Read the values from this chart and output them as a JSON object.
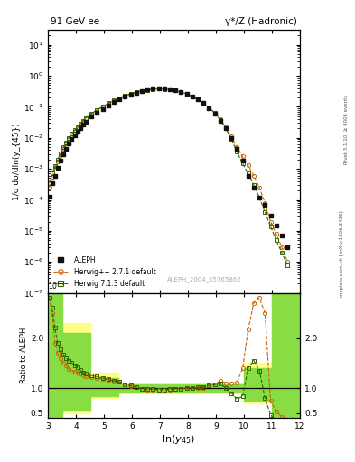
{
  "title_left": "91 GeV ee",
  "title_right": "γ*/Z (Hadronic)",
  "xlabel": "-ln(y_{45})",
  "ylabel_main": "1/σ dσ/dln(y_{45})",
  "ylabel_ratio": "Ratio to ALEPH",
  "watermark": "ALEPH_2004_S5765862",
  "right_label": "mcplots.cern.ch [arXiv:1306.3436]",
  "rivet_label": "Rivet 3.1.10, ≥ 400k events",
  "aleph_x": [
    3.05,
    3.15,
    3.25,
    3.35,
    3.45,
    3.55,
    3.65,
    3.75,
    3.85,
    3.95,
    4.05,
    4.15,
    4.25,
    4.35,
    4.55,
    4.75,
    4.95,
    5.15,
    5.35,
    5.55,
    5.75,
    5.95,
    6.15,
    6.35,
    6.55,
    6.75,
    6.95,
    7.15,
    7.35,
    7.55,
    7.75,
    7.95,
    8.15,
    8.35,
    8.55,
    8.75,
    8.95,
    9.15,
    9.35,
    9.55,
    9.75,
    9.95,
    10.15,
    10.35,
    10.55,
    10.75,
    10.95,
    11.15,
    11.35,
    11.55
  ],
  "aleph_y": [
    0.00013,
    0.00035,
    0.0006,
    0.0011,
    0.0018,
    0.003,
    0.0045,
    0.0065,
    0.009,
    0.012,
    0.016,
    0.021,
    0.027,
    0.034,
    0.048,
    0.065,
    0.085,
    0.11,
    0.14,
    0.17,
    0.21,
    0.25,
    0.29,
    0.33,
    0.36,
    0.38,
    0.395,
    0.39,
    0.37,
    0.34,
    0.305,
    0.26,
    0.215,
    0.17,
    0.13,
    0.09,
    0.06,
    0.035,
    0.02,
    0.01,
    0.0045,
    0.0018,
    0.0006,
    0.00025,
    0.00012,
    7e-05,
    3e-05,
    1.5e-05,
    7e-06,
    3e-06
  ],
  "aleph_color": "#111111",
  "herwigpp_x": [
    3.05,
    3.15,
    3.25,
    3.35,
    3.45,
    3.55,
    3.65,
    3.75,
    3.85,
    3.95,
    4.05,
    4.15,
    4.25,
    4.35,
    4.55,
    4.75,
    4.95,
    5.15,
    5.35,
    5.55,
    5.75,
    5.95,
    6.15,
    6.35,
    6.55,
    6.75,
    6.95,
    7.15,
    7.35,
    7.55,
    7.75,
    7.95,
    8.15,
    8.35,
    8.55,
    8.75,
    8.95,
    9.15,
    9.35,
    9.55,
    9.75,
    9.95,
    10.15,
    10.35,
    10.55,
    10.75,
    10.95,
    11.15,
    11.35,
    11.55
  ],
  "herwigpp_y": [
    0.00025,
    0.00055,
    0.001,
    0.0017,
    0.0028,
    0.0045,
    0.0065,
    0.009,
    0.012,
    0.016,
    0.021,
    0.027,
    0.034,
    0.042,
    0.058,
    0.078,
    0.1,
    0.128,
    0.158,
    0.19,
    0.225,
    0.26,
    0.295,
    0.325,
    0.35,
    0.37,
    0.38,
    0.375,
    0.36,
    0.335,
    0.3,
    0.26,
    0.215,
    0.17,
    0.13,
    0.095,
    0.065,
    0.04,
    0.022,
    0.011,
    0.005,
    0.0025,
    0.0013,
    0.0006,
    0.00025,
    8e-05,
    2e-05,
    8e-06,
    3e-06,
    1e-06
  ],
  "herwigpp_color": "#cc6600",
  "herwig713_x": [
    3.05,
    3.15,
    3.25,
    3.35,
    3.45,
    3.55,
    3.65,
    3.75,
    3.85,
    3.95,
    4.05,
    4.15,
    4.25,
    4.35,
    4.55,
    4.75,
    4.95,
    5.15,
    5.35,
    5.55,
    5.75,
    5.95,
    6.15,
    6.35,
    6.55,
    6.75,
    6.95,
    7.15,
    7.35,
    7.55,
    7.75,
    7.95,
    8.15,
    8.35,
    8.55,
    8.75,
    8.95,
    9.15,
    9.35,
    9.55,
    9.75,
    9.95,
    10.15,
    10.35,
    10.55,
    10.75,
    10.95,
    11.15,
    11.35,
    11.55
  ],
  "herwig713_y": [
    0.00035,
    0.0007,
    0.0012,
    0.002,
    0.0032,
    0.005,
    0.0072,
    0.01,
    0.0135,
    0.0175,
    0.0225,
    0.0285,
    0.0355,
    0.044,
    0.06,
    0.08,
    0.102,
    0.13,
    0.16,
    0.192,
    0.227,
    0.262,
    0.297,
    0.327,
    0.352,
    0.372,
    0.382,
    0.377,
    0.362,
    0.337,
    0.302,
    0.262,
    0.217,
    0.172,
    0.132,
    0.095,
    0.064,
    0.038,
    0.02,
    0.009,
    0.0035,
    0.0015,
    0.0007,
    0.0003,
    0.00012,
    4e-05,
    1.4e-05,
    5e-06,
    2e-06,
    8e-07
  ],
  "herwig713_color": "#336600",
  "ratio_herwigpp_y": [
    2.8,
    2.5,
    1.9,
    1.7,
    1.6,
    1.5,
    1.45,
    1.38,
    1.33,
    1.33,
    1.31,
    1.29,
    1.26,
    1.24,
    1.21,
    1.2,
    1.18,
    1.16,
    1.13,
    1.12,
    1.07,
    1.04,
    1.02,
    0.985,
    0.972,
    0.974,
    0.962,
    0.962,
    0.973,
    0.985,
    0.984,
    1.0,
    1.0,
    1.0,
    1.0,
    1.056,
    1.08,
    1.14,
    1.1,
    1.1,
    1.11,
    1.39,
    2.17,
    2.7,
    2.8,
    2.5,
    0.75,
    0.53,
    0.43,
    0.33
  ],
  "ratio_herwig713_y": [
    2.8,
    2.6,
    2.2,
    1.9,
    1.78,
    1.67,
    1.6,
    1.54,
    1.5,
    1.46,
    1.41,
    1.36,
    1.31,
    1.29,
    1.25,
    1.23,
    1.2,
    1.18,
    1.14,
    1.13,
    1.08,
    1.05,
    1.02,
    0.99,
    0.978,
    0.979,
    0.968,
    0.967,
    0.978,
    0.991,
    0.99,
    1.008,
    1.009,
    1.012,
    1.015,
    1.056,
    1.067,
    1.086,
    1.0,
    0.9,
    0.78,
    0.833,
    1.4,
    1.55,
    1.35,
    0.8,
    0.467,
    0.333,
    0.286,
    0.267
  ],
  "band_yellow_x_edges": [
    3.0,
    3.5,
    4.5,
    5.5,
    9.5,
    10.0,
    11.0,
    12.0
  ],
  "band_yellow_lo": [
    0.4,
    0.5,
    0.8,
    0.9,
    0.9,
    0.7,
    0.4,
    0.4
  ],
  "band_yellow_hi": [
    2.9,
    2.3,
    1.3,
    1.1,
    1.1,
    1.5,
    2.9,
    2.9
  ],
  "band_green_x_edges": [
    3.0,
    3.5,
    4.5,
    5.5,
    9.5,
    10.0,
    11.0,
    12.0
  ],
  "band_green_lo": [
    0.4,
    0.55,
    0.83,
    0.92,
    0.92,
    0.75,
    0.4,
    0.4
  ],
  "band_green_hi": [
    2.9,
    2.1,
    1.2,
    1.08,
    1.08,
    1.4,
    2.9,
    2.9
  ],
  "xlim": [
    3.0,
    12.0
  ],
  "ylim_main": [
    1e-07,
    30
  ],
  "ylim_ratio": [
    0.4,
    2.9
  ],
  "ratio_yticks": [
    0.5,
    1.0,
    2.0
  ],
  "background_color": "#ffffff"
}
